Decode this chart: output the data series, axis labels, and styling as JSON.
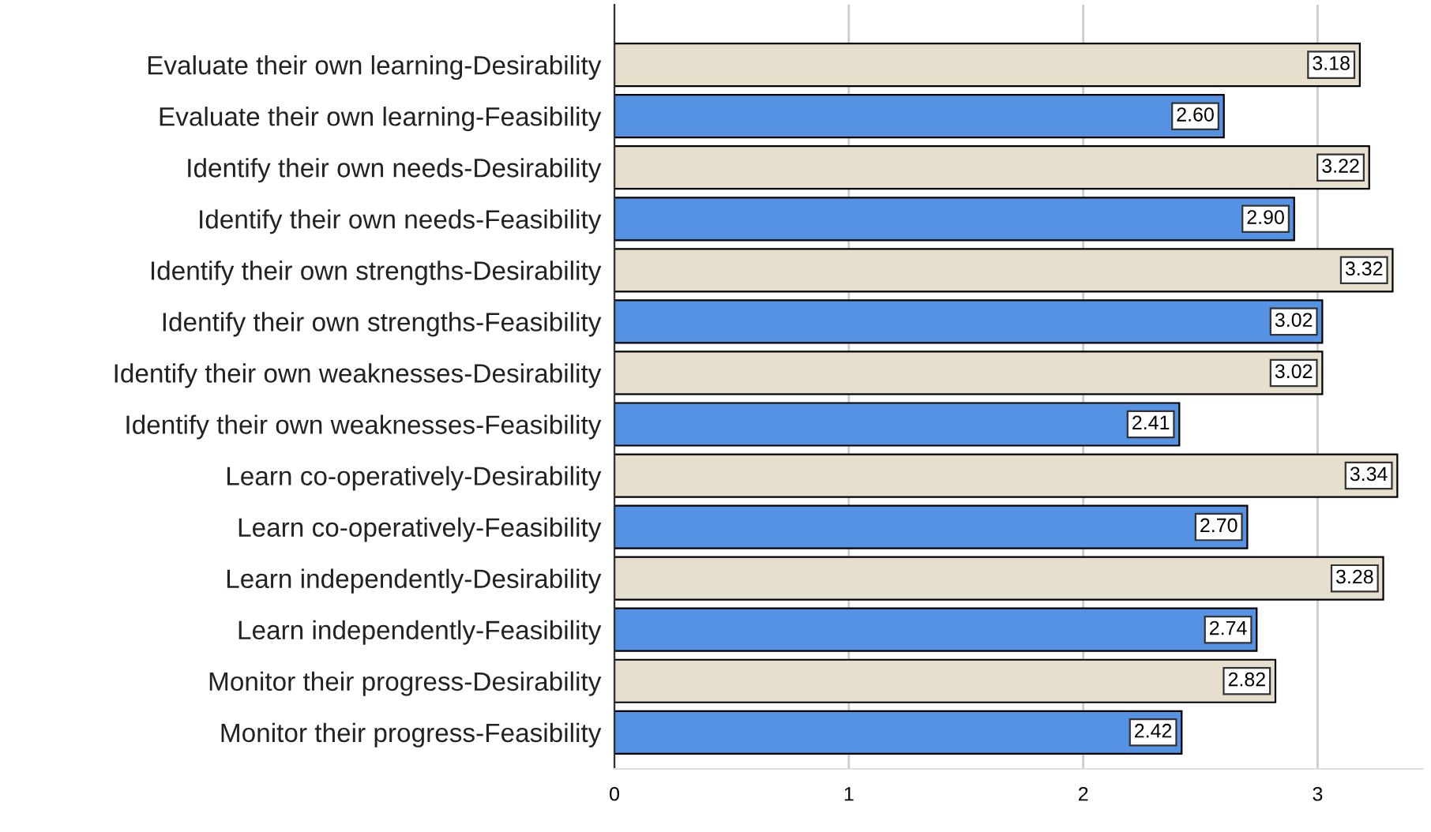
{
  "chart_data": {
    "type": "bar",
    "orientation": "horizontal",
    "categories": [
      "Evaluate their own learning-Desirability",
      "Evaluate their own learning-Feasibility",
      "Identify their own needs-Desirability",
      "Identify their own needs-Feasibility",
      "Identify their own strengths-Desirability",
      "Identify their own strengths-Feasibility",
      "Identify their own weaknesses-Desirability",
      "Identify their own weaknesses-Feasibility",
      "Learn co-operatively-Desirability",
      "Learn co-operatively-Feasibility",
      "Learn independently-Desirability",
      "Learn independently-Feasibility",
      "Monitor their progress-Desirability",
      "Monitor their progress-Feasibility"
    ],
    "values": [
      3.18,
      2.6,
      3.22,
      2.9,
      3.32,
      3.02,
      3.02,
      2.41,
      3.34,
      2.7,
      3.28,
      2.74,
      2.82,
      2.42
    ],
    "colors": [
      "#e6dfcd",
      "#5592e3",
      "#e6dfcd",
      "#5592e3",
      "#e6dfcd",
      "#5592e3",
      "#e6dfcd",
      "#5592e3",
      "#e6dfcd",
      "#5592e3",
      "#e6dfcd",
      "#5592e3",
      "#e6dfcd",
      "#5592e3"
    ],
    "xlim": [
      0,
      3.45
    ],
    "xticks": [
      0,
      1,
      2,
      3
    ],
    "grid": "x",
    "value_labels": [
      "3.18",
      "2.60",
      "3.22",
      "2.90",
      "3.32",
      "3.02",
      "3.02",
      "2.41",
      "3.34",
      "2.70",
      "3.28",
      "2.74",
      "2.82",
      "2.42"
    ]
  }
}
